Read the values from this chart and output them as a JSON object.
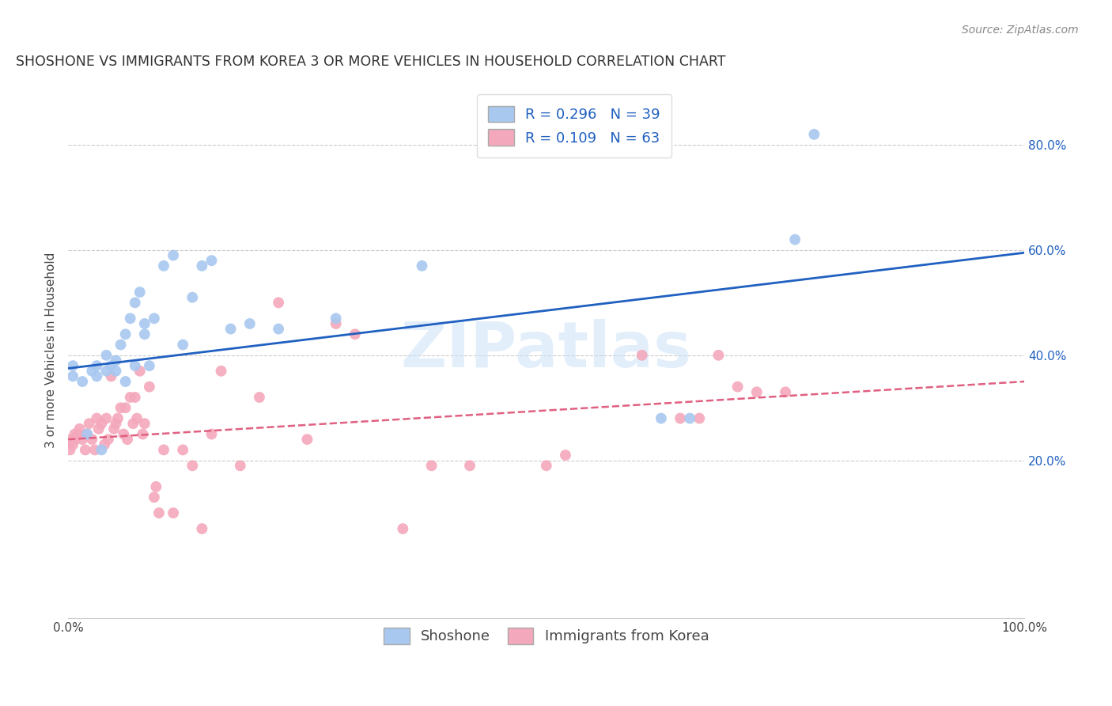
{
  "title": "SHOSHONE VS IMMIGRANTS FROM KOREA 3 OR MORE VEHICLES IN HOUSEHOLD CORRELATION CHART",
  "source": "Source: ZipAtlas.com",
  "ylabel": "3 or more Vehicles in Household",
  "ytick_labels": [
    "20.0%",
    "40.0%",
    "60.0%",
    "80.0%"
  ],
  "ytick_values": [
    0.2,
    0.4,
    0.6,
    0.8
  ],
  "xlim": [
    0.0,
    1.0
  ],
  "ylim": [
    -0.1,
    0.92
  ],
  "blue_R": 0.296,
  "blue_N": 39,
  "pink_R": 0.109,
  "pink_N": 63,
  "blue_color": "#a8c8f0",
  "pink_color": "#f4a8bc",
  "blue_line_color": "#2060c0",
  "pink_line_color": "#e06080",
  "watermark_color": "#c8dff8",
  "blue_scatter_x": [
    0.005,
    0.005,
    0.015,
    0.02,
    0.025,
    0.03,
    0.03,
    0.035,
    0.04,
    0.04,
    0.045,
    0.05,
    0.05,
    0.055,
    0.06,
    0.06,
    0.065,
    0.07,
    0.07,
    0.075,
    0.08,
    0.08,
    0.085,
    0.09,
    0.1,
    0.11,
    0.12,
    0.13,
    0.14,
    0.15,
    0.17,
    0.19,
    0.22,
    0.28,
    0.37,
    0.62,
    0.65,
    0.76,
    0.78
  ],
  "blue_scatter_y": [
    0.36,
    0.38,
    0.35,
    0.25,
    0.37,
    0.36,
    0.38,
    0.22,
    0.37,
    0.4,
    0.38,
    0.37,
    0.39,
    0.42,
    0.35,
    0.44,
    0.47,
    0.38,
    0.5,
    0.52,
    0.44,
    0.46,
    0.38,
    0.47,
    0.57,
    0.59,
    0.42,
    0.51,
    0.57,
    0.58,
    0.45,
    0.46,
    0.45,
    0.47,
    0.57,
    0.28,
    0.28,
    0.62,
    0.82
  ],
  "pink_scatter_x": [
    0.002,
    0.003,
    0.005,
    0.007,
    0.008,
    0.01,
    0.012,
    0.015,
    0.018,
    0.02,
    0.022,
    0.025,
    0.028,
    0.03,
    0.032,
    0.035,
    0.038,
    0.04,
    0.042,
    0.045,
    0.048,
    0.05,
    0.052,
    0.055,
    0.058,
    0.06,
    0.062,
    0.065,
    0.068,
    0.07,
    0.072,
    0.075,
    0.078,
    0.08,
    0.085,
    0.09,
    0.092,
    0.095,
    0.1,
    0.11,
    0.12,
    0.13,
    0.14,
    0.15,
    0.16,
    0.18,
    0.2,
    0.22,
    0.25,
    0.28,
    0.3,
    0.35,
    0.38,
    0.42,
    0.5,
    0.52,
    0.6,
    0.64,
    0.66,
    0.68,
    0.7,
    0.72,
    0.75
  ],
  "pink_scatter_y": [
    0.22,
    0.24,
    0.23,
    0.25,
    0.24,
    0.25,
    0.26,
    0.24,
    0.22,
    0.25,
    0.27,
    0.24,
    0.22,
    0.28,
    0.26,
    0.27,
    0.23,
    0.28,
    0.24,
    0.36,
    0.26,
    0.27,
    0.28,
    0.3,
    0.25,
    0.3,
    0.24,
    0.32,
    0.27,
    0.32,
    0.28,
    0.37,
    0.25,
    0.27,
    0.34,
    0.13,
    0.15,
    0.1,
    0.22,
    0.1,
    0.22,
    0.19,
    0.07,
    0.25,
    0.37,
    0.19,
    0.32,
    0.5,
    0.24,
    0.46,
    0.44,
    0.07,
    0.19,
    0.19,
    0.19,
    0.21,
    0.4,
    0.28,
    0.28,
    0.4,
    0.34,
    0.33,
    0.33
  ],
  "blue_line_x": [
    0.0,
    1.0
  ],
  "blue_line_y": [
    0.375,
    0.595
  ],
  "pink_line_x": [
    0.0,
    1.0
  ],
  "pink_line_y": [
    0.24,
    0.35
  ],
  "grid_color": "#cccccc",
  "background_color": "#ffffff",
  "title_fontsize": 12.5,
  "axis_label_fontsize": 11,
  "tick_fontsize": 11,
  "legend_fontsize": 13,
  "source_fontsize": 10
}
